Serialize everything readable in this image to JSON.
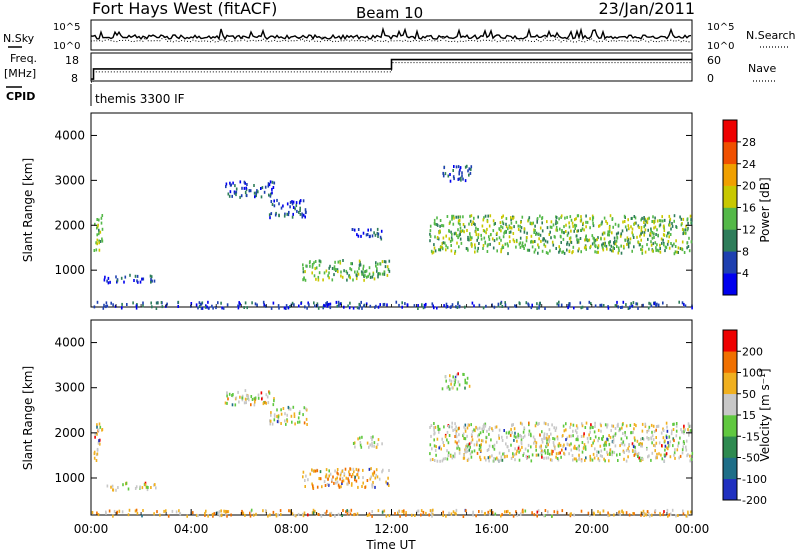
{
  "header": {
    "station": "Fort Hays West (fitACF)",
    "beam": "Beam 10",
    "date": "23/Jan/2011"
  },
  "strip_panels": {
    "nsky_label": "N.Sky",
    "nsky_ticks": [
      "10^5",
      "10^0"
    ],
    "nsearch_label": "N.Search",
    "nsearch_ticks": [
      "10^5",
      "10^0"
    ],
    "freq_label": "Freq.",
    "freq_unit": "[MHz]",
    "freq_ticks": [
      "18",
      "8"
    ],
    "nave_label": "Nave",
    "nave_ticks": [
      "60",
      "0"
    ],
    "cpid_label": "CPID",
    "cpid_text": "themis 3300 IF",
    "freq_levels": [
      {
        "from_hour": 0.0,
        "to_hour": 0.1,
        "mhz": 5
      },
      {
        "from_hour": 0.1,
        "to_hour": 12.0,
        "mhz": 10.5
      },
      {
        "from_hour": 12.0,
        "to_hour": 24.0,
        "mhz": 15.5
      }
    ]
  },
  "colorbars": {
    "power": {
      "label": "Power [dB]",
      "ticks": [
        "28",
        "24",
        "20",
        "16",
        "12",
        "8",
        "4"
      ],
      "colors": [
        "#0000ee",
        "#1e40b0",
        "#2e7d5a",
        "#54b848",
        "#c8c800",
        "#f0a000",
        "#f05000",
        "#ee0000"
      ]
    },
    "velocity": {
      "label": "Velocity [m s⁻¹]",
      "ticks": [
        "200",
        "100",
        "50",
        "15",
        "-15",
        "-50",
        "-100",
        "-200"
      ],
      "colors": [
        "#2030c0",
        "#1e6e88",
        "#2e8a50",
        "#60c840",
        "#c8c8c8",
        "#f0b020",
        "#f07000",
        "#ee0000"
      ]
    }
  },
  "x_axis": {
    "label": "Time UT",
    "ticks": [
      "00:00",
      "04:00",
      "08:00",
      "12:00",
      "16:00",
      "20:00",
      "00:00"
    ]
  },
  "chart_data": [
    {
      "type": "heatmap",
      "title": "",
      "xlabel": "Time UT",
      "ylabel": "Slant Range [km]",
      "y_ticks": [
        "1000",
        "2000",
        "3000",
        "4000"
      ],
      "ylim": [
        180,
        4500
      ],
      "xlim_hours": [
        0,
        24
      ],
      "colorbar": "power",
      "scatter_regions": [
        {
          "t": [
            0.1,
            0.45
          ],
          "r": [
            1400,
            2300
          ],
          "level": 3
        },
        {
          "t": [
            0.5,
            2.6
          ],
          "r": [
            750,
            920
          ],
          "level": 1
        },
        {
          "t": [
            5.3,
            7.3
          ],
          "r": [
            2650,
            3000
          ],
          "level": 1
        },
        {
          "t": [
            7.1,
            8.6
          ],
          "r": [
            2200,
            2600
          ],
          "level": 1
        },
        {
          "t": [
            8.4,
            11.9
          ],
          "r": [
            800,
            1250
          ],
          "level": 3
        },
        {
          "t": [
            10.4,
            11.6
          ],
          "r": [
            1700,
            1950
          ],
          "level": 1
        },
        {
          "t": [
            13.5,
            24.0
          ],
          "r": [
            1400,
            2250
          ],
          "level": 3
        },
        {
          "t": [
            14.0,
            15.2
          ],
          "r": [
            3000,
            3350
          ],
          "level": 1
        },
        {
          "t": [
            0.0,
            24.0
          ],
          "r": [
            180,
            320
          ],
          "level": 1
        }
      ]
    },
    {
      "type": "heatmap",
      "title": "",
      "xlabel": "Time UT",
      "ylabel": "Slant Range [km]",
      "y_ticks": [
        "1000",
        "2000",
        "3000",
        "4000"
      ],
      "ylim": [
        180,
        4500
      ],
      "xlim_hours": [
        0,
        24
      ],
      "colorbar": "velocity",
      "scatter_regions": [
        {
          "t": [
            0.1,
            0.45
          ],
          "r": [
            1400,
            2300
          ],
          "level": 5
        },
        {
          "t": [
            0.5,
            2.6
          ],
          "r": [
            750,
            920
          ],
          "level": 4
        },
        {
          "t": [
            5.3,
            7.3
          ],
          "r": [
            2650,
            3000
          ],
          "level": 4
        },
        {
          "t": [
            7.1,
            8.6
          ],
          "r": [
            2200,
            2600
          ],
          "level": 4
        },
        {
          "t": [
            8.4,
            11.9
          ],
          "r": [
            800,
            1250
          ],
          "level": 5
        },
        {
          "t": [
            10.4,
            11.6
          ],
          "r": [
            1700,
            1950
          ],
          "level": 4
        },
        {
          "t": [
            13.5,
            24.0
          ],
          "r": [
            1400,
            2250
          ],
          "level": 4
        },
        {
          "t": [
            14.0,
            15.2
          ],
          "r": [
            3000,
            3350
          ],
          "level": 4
        },
        {
          "t": [
            0.0,
            24.0
          ],
          "r": [
            180,
            320
          ],
          "level": 5
        }
      ]
    }
  ]
}
